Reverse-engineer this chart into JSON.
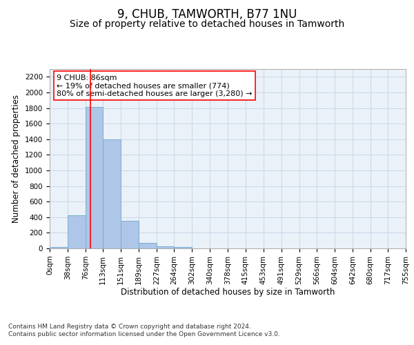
{
  "title": "9, CHUB, TAMWORTH, B77 1NU",
  "subtitle": "Size of property relative to detached houses in Tamworth",
  "xlabel": "Distribution of detached houses by size in Tamworth",
  "ylabel": "Number of detached properties",
  "bar_color": "#aec6e8",
  "bar_edge_color": "#7aaed0",
  "grid_color": "#c8d8e8",
  "background_color": "#eaf1f8",
  "bin_edges": [
    0,
    38,
    76,
    113,
    151,
    189,
    227,
    264,
    302,
    340,
    378,
    415,
    453,
    491,
    529,
    566,
    604,
    642,
    680,
    717,
    755
  ],
  "bar_heights": [
    20,
    425,
    1810,
    1400,
    350,
    75,
    30,
    20,
    0,
    0,
    0,
    0,
    0,
    0,
    0,
    0,
    0,
    0,
    0,
    0
  ],
  "tick_labels": [
    "0sqm",
    "38sqm",
    "76sqm",
    "113sqm",
    "151sqm",
    "189sqm",
    "227sqm",
    "264sqm",
    "302sqm",
    "340sqm",
    "378sqm",
    "415sqm",
    "453sqm",
    "491sqm",
    "529sqm",
    "566sqm",
    "604sqm",
    "642sqm",
    "680sqm",
    "717sqm",
    "755sqm"
  ],
  "ylim": [
    0,
    2300
  ],
  "yticks": [
    0,
    200,
    400,
    600,
    800,
    1000,
    1200,
    1400,
    1600,
    1800,
    2000,
    2200
  ],
  "red_line_x": 86,
  "annotation_title": "9 CHUB: 86sqm",
  "annotation_line1": "← 19% of detached houses are smaller (774)",
  "annotation_line2": "80% of semi-detached houses are larger (3,280) →",
  "footer_line1": "Contains HM Land Registry data © Crown copyright and database right 2024.",
  "footer_line2": "Contains public sector information licensed under the Open Government Licence v3.0.",
  "title_fontsize": 12,
  "subtitle_fontsize": 10,
  "axis_label_fontsize": 8.5,
  "tick_fontsize": 7.5,
  "annotation_fontsize": 8,
  "footer_fontsize": 6.5
}
